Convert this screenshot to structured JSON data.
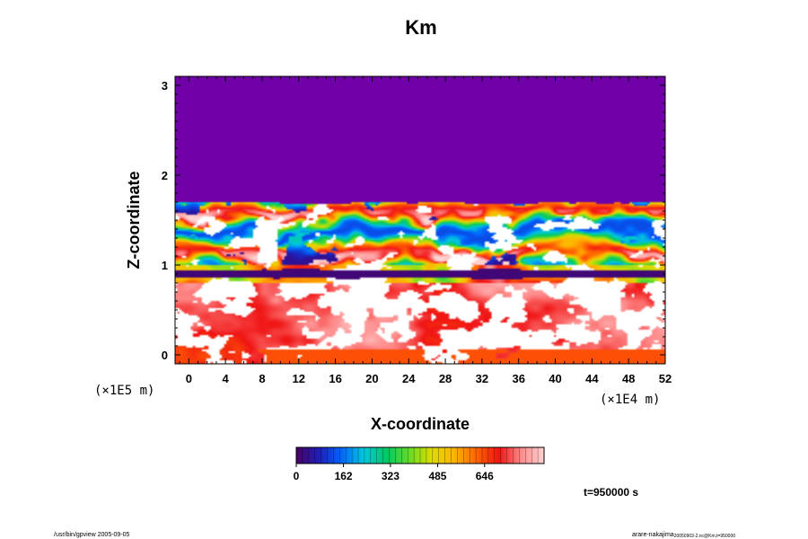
{
  "chart_data": {
    "type": "heatmap",
    "title": "Km",
    "xlabel": "X-coordinate",
    "ylabel": "Z-coordinate",
    "x_scale_label": "(×1E4 m)",
    "y_scale_label": "(×1E5 m)",
    "xlim": [
      -1.5,
      52
    ],
    "ylim": [
      -0.1,
      3.1
    ],
    "x_ticks": [
      "0",
      "4",
      "8",
      "12",
      "16",
      "20",
      "24",
      "28",
      "32",
      "36",
      "40",
      "44",
      "48",
      "52"
    ],
    "y_ticks": [
      "0",
      "1",
      "2",
      "3"
    ],
    "colorbar": {
      "min": 0,
      "max": 850,
      "ticks": [
        "0",
        "162",
        "323",
        "485",
        "646"
      ],
      "palette": [
        "#4b0066",
        "#1e1eb4",
        "#0066ff",
        "#00c8dc",
        "#00c864",
        "#64dc28",
        "#dcdc00",
        "#ffb400",
        "#ff6400",
        "#f01414",
        "#ff8c8c",
        "#ffd2d2"
      ]
    },
    "field_description_values": {
      "upper_layer_value": 0,
      "upper_layer_bottom_z": 1.72,
      "turbulent_band_z": [
        0.85,
        1.72
      ],
      "surface_layer_max": 850
    },
    "time_label": "t=950000 s"
  },
  "footer": {
    "left": "/usr/bin/gpview 2005-09-05",
    "right": "arare-nakajima",
    "right_sub": "20050903-2.nc@Km,t=950000"
  }
}
